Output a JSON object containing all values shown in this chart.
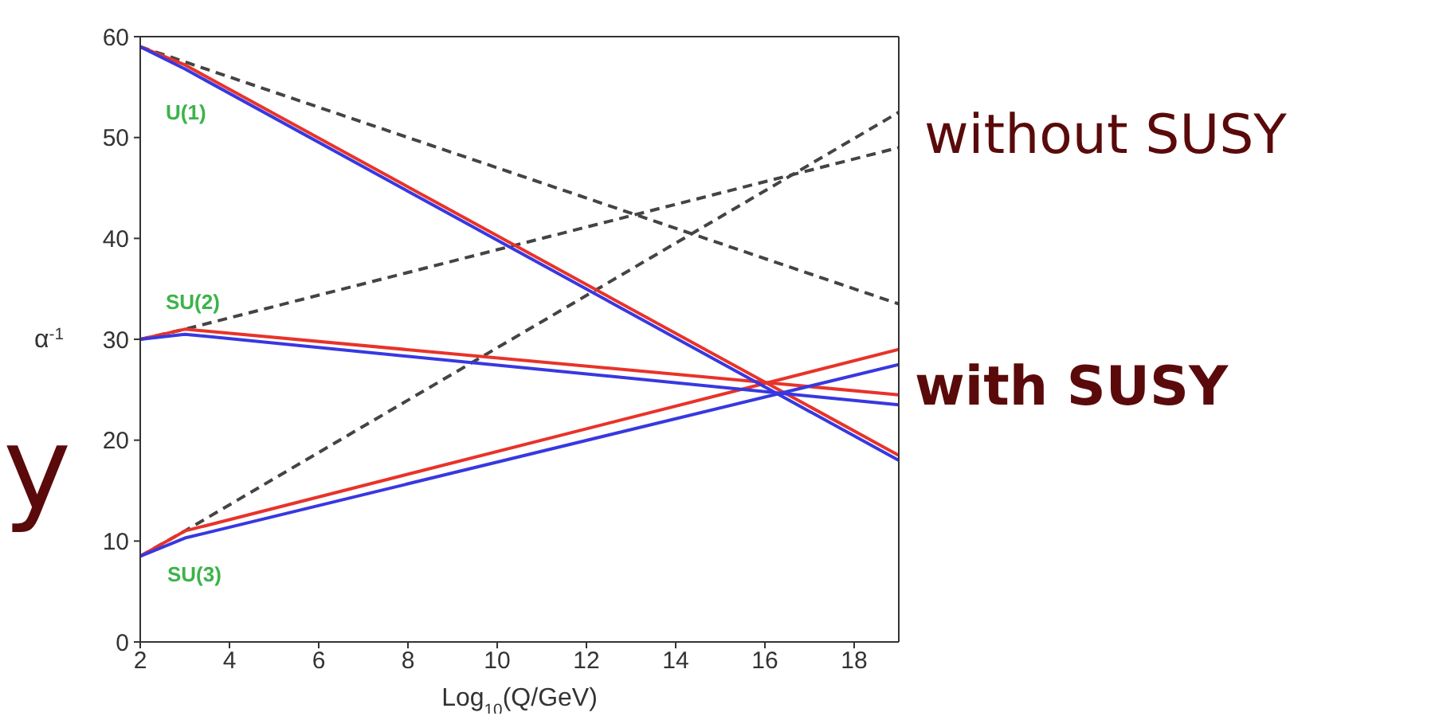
{
  "chart_data": {
    "type": "line",
    "xlabel": "Log$_{10}$(Q/GeV)",
    "ylabel": "α$^{-1}$",
    "xlim": [
      2,
      19
    ],
    "xticks": [
      2,
      4,
      6,
      8,
      10,
      12,
      14,
      16,
      18
    ],
    "ylim": [
      0,
      60
    ],
    "yticks": [
      0,
      10,
      20,
      30,
      40,
      50,
      60
    ],
    "grid": false,
    "marker": "none",
    "series": [
      {
        "color": "#444444",
        "line_style": "dashed",
        "x": [
          2,
          3,
          19
        ],
        "values": [
          59,
          57.5,
          33.5
        ]
      },
      {
        "color": "#444444",
        "line_style": "dashed",
        "x": [
          2,
          3,
          19
        ],
        "values": [
          30,
          31,
          49
        ]
      },
      {
        "color": "#444444",
        "line_style": "dashed",
        "x": [
          2,
          3,
          19
        ],
        "values": [
          8.5,
          11,
          52.5
        ]
      },
      {
        "color": "#e8332a",
        "line_style": "solid",
        "x": [
          2,
          3,
          19
        ],
        "values": [
          59,
          57.2,
          18.5
        ]
      },
      {
        "color": "#e8332a",
        "line_style": "solid",
        "x": [
          2,
          3,
          19
        ],
        "values": [
          30,
          31,
          24.5
        ]
      },
      {
        "color": "#e8332a",
        "line_style": "solid",
        "x": [
          2,
          3,
          19
        ],
        "values": [
          8.5,
          11,
          29
        ]
      },
      {
        "color": "#3838e0",
        "line_style": "solid",
        "x": [
          2,
          3,
          19
        ],
        "values": [
          59,
          56.8,
          18
        ]
      },
      {
        "color": "#3838e0",
        "line_style": "solid",
        "x": [
          2,
          3,
          19
        ],
        "values": [
          30,
          30.5,
          23.5
        ]
      },
      {
        "color": "#3838e0",
        "line_style": "solid",
        "x": [
          2,
          3,
          19
        ],
        "values": [
          8.5,
          10.3,
          27.5
        ]
      }
    ],
    "annotations": [
      "U(1)",
      "SU(2)",
      "SU(3)",
      "without SUSY",
      "with SUSY",
      "y"
    ]
  }
}
